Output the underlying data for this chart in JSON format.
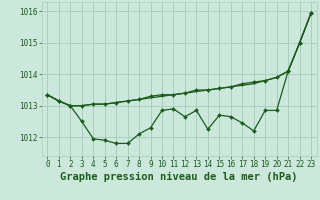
{
  "title": "Graphe pression niveau de la mer (hPa)",
  "background_color": "#cce8dc",
  "grid_color": "#aacfbe",
  "line_color": "#1a5c1a",
  "xlim": [
    -0.5,
    23.5
  ],
  "ylim": [
    1011.4,
    1016.3
  ],
  "yticks": [
    1012,
    1013,
    1014,
    1015,
    1016
  ],
  "xticks": [
    0,
    1,
    2,
    3,
    4,
    5,
    6,
    7,
    8,
    9,
    10,
    11,
    12,
    13,
    14,
    15,
    16,
    17,
    18,
    19,
    20,
    21,
    22,
    23
  ],
  "series_smooth_x": [
    0,
    1,
    2,
    3,
    4,
    5,
    6,
    7,
    8,
    9,
    10,
    11,
    12,
    13,
    14,
    15,
    16,
    17,
    18,
    19,
    20,
    21,
    22,
    23
  ],
  "series_smooth_y": [
    1013.35,
    1013.15,
    1013.0,
    1013.0,
    1013.05,
    1013.05,
    1013.1,
    1013.15,
    1013.2,
    1013.25,
    1013.3,
    1013.35,
    1013.4,
    1013.45,
    1013.5,
    1013.55,
    1013.6,
    1013.65,
    1013.7,
    1013.8,
    1013.9,
    1014.1,
    1015.0,
    1015.95
  ],
  "series_upper_x": [
    0,
    1,
    2,
    3,
    4,
    5,
    6,
    7,
    8,
    9,
    10,
    11,
    12,
    13,
    14,
    15,
    16,
    17,
    18,
    19,
    20,
    21,
    22,
    23
  ],
  "series_upper_y": [
    1013.35,
    1013.15,
    1013.0,
    1013.0,
    1013.05,
    1013.05,
    1013.1,
    1013.15,
    1013.2,
    1013.3,
    1013.35,
    1013.35,
    1013.4,
    1013.5,
    1013.5,
    1013.55,
    1013.6,
    1013.7,
    1013.75,
    1013.8,
    1013.9,
    1014.1,
    1015.0,
    1015.95
  ],
  "series_lower_x": [
    0,
    1,
    2,
    3,
    4,
    5,
    6,
    7,
    8,
    9,
    10,
    11,
    12,
    13,
    14,
    15,
    16,
    17,
    18,
    19,
    20,
    21,
    22,
    23
  ],
  "series_lower_y": [
    1013.35,
    1013.15,
    1013.0,
    1012.5,
    1011.95,
    1011.9,
    1011.8,
    1011.8,
    1012.1,
    1012.3,
    1012.85,
    1012.9,
    1012.65,
    1012.85,
    1012.25,
    1012.7,
    1012.65,
    1012.45,
    1012.2,
    1012.85,
    1012.85,
    1014.1,
    1015.0,
    1015.95
  ],
  "tick_color": "#1a5c1a",
  "title_fontsize": 7.5,
  "tick_fontsize": 5.5,
  "linewidth": 0.9,
  "markersize": 2.0
}
